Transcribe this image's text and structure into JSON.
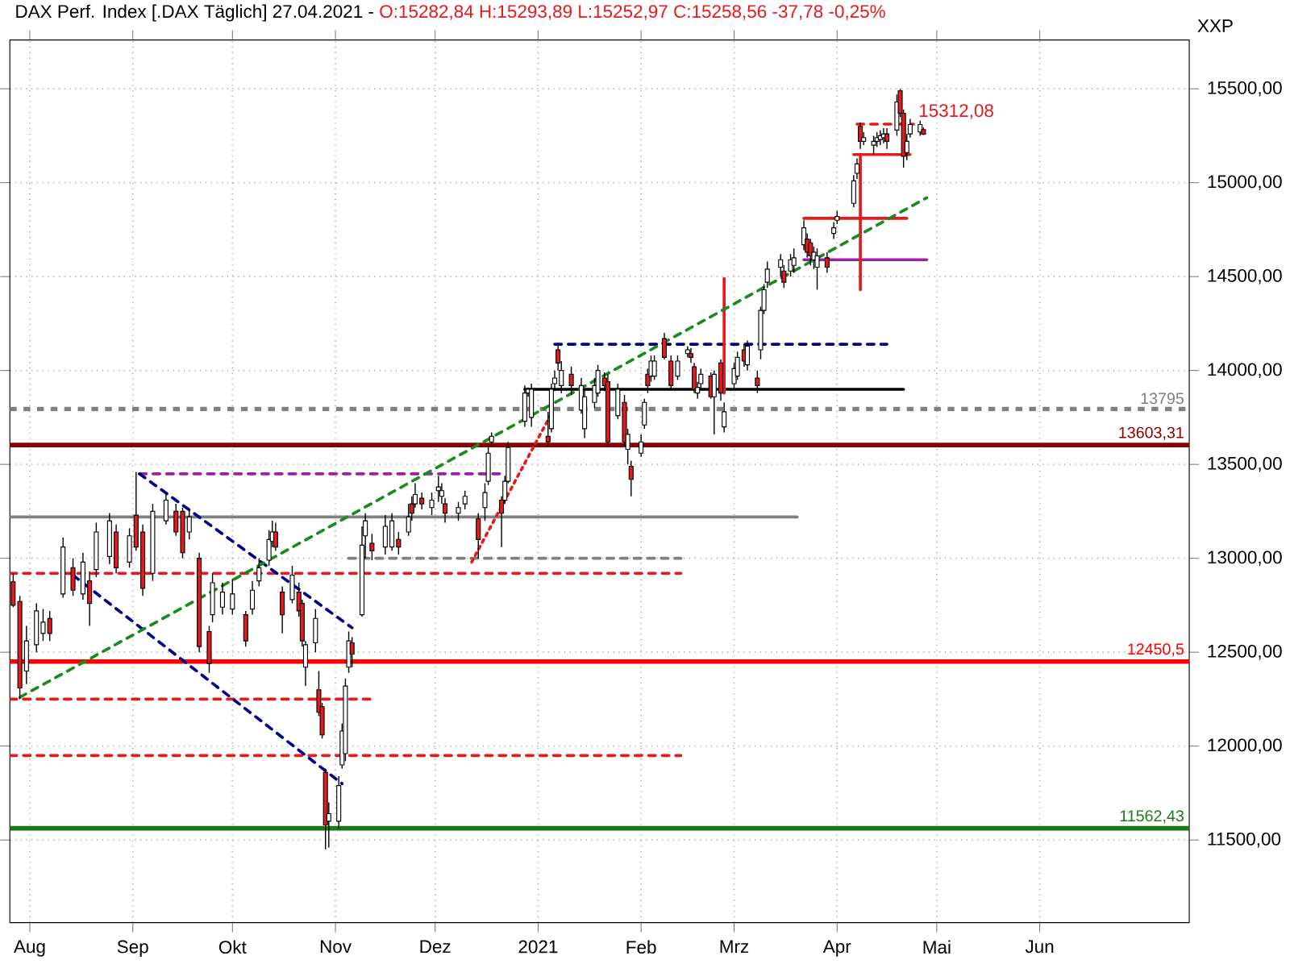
{
  "chart_data": {
    "type": "candlestick",
    "title": "DAX Perf. Index [.DAX Täglich] 27.04.2021 -",
    "subtitle": "O:15282,84 H:15293,89 L:15252,97 C:15258,56 -37,78 -0,25%",
    "ylabel": "XXP",
    "x": [
      "2020-07-27",
      "2020-07-29",
      "2020-07-31",
      "2020-08-03",
      "2020-08-05",
      "2020-08-07",
      "2020-08-11",
      "2020-08-14",
      "2020-08-17",
      "2020-08-19",
      "2020-08-21",
      "2020-08-25",
      "2020-08-27",
      "2020-08-31",
      "2020-09-02",
      "2020-09-04",
      "2020-09-07",
      "2020-09-11",
      "2020-09-14",
      "2020-09-16",
      "2020-09-18",
      "2020-09-21",
      "2020-09-24",
      "2020-09-25",
      "2020-09-28",
      "2020-10-01",
      "2020-10-05",
      "2020-10-07",
      "2020-10-09",
      "2020-10-12",
      "2020-10-13",
      "2020-10-14",
      "2020-10-16",
      "2020-10-19",
      "2020-10-21",
      "2020-10-22",
      "2020-10-23",
      "2020-10-26",
      "2020-10-27",
      "2020-10-28",
      "2020-10-29",
      "2020-10-30",
      "2020-11-02",
      "2020-11-03",
      "2020-11-04",
      "2020-11-05",
      "2020-11-06",
      "2020-11-09",
      "2020-11-10",
      "2020-11-12",
      "2020-11-16",
      "2020-11-18",
      "2020-11-20",
      "2020-11-23",
      "2020-11-24",
      "2020-11-25",
      "2020-11-27",
      "2020-11-30",
      "2020-12-02",
      "2020-12-03",
      "2020-12-04",
      "2020-12-08",
      "2020-12-10",
      "2020-12-14",
      "2020-12-16",
      "2020-12-17",
      "2020-12-18",
      "2020-12-21",
      "2020-12-22",
      "2020-12-23",
      "2020-12-28",
      "2020-12-29",
      "2020-12-30",
      "2021-01-04",
      "2021-01-05",
      "2021-01-06",
      "2021-01-07",
      "2021-01-08",
      "2021-01-11",
      "2021-01-14",
      "2021-01-15",
      "2021-01-18",
      "2021-01-19",
      "2021-01-21",
      "2021-01-22",
      "2021-01-25",
      "2021-01-27",
      "2021-01-28",
      "2021-01-29",
      "2021-02-01",
      "2021-02-02",
      "2021-02-03",
      "2021-02-04",
      "2021-02-05",
      "2021-02-08",
      "2021-02-10",
      "2021-02-12",
      "2021-02-15",
      "2021-02-16",
      "2021-02-17",
      "2021-02-18",
      "2021-02-19",
      "2021-02-22",
      "2021-02-23",
      "2021-02-25",
      "2021-02-26",
      "2021-03-01",
      "2021-03-02",
      "2021-03-04",
      "2021-03-05",
      "2021-03-08",
      "2021-03-09",
      "2021-03-10",
      "2021-03-11",
      "2021-03-15",
      "2021-03-16",
      "2021-03-18",
      "2021-03-19",
      "2021-03-22",
      "2021-03-23",
      "2021-03-24",
      "2021-03-25",
      "2021-03-26",
      "2021-03-29",
      "2021-03-31",
      "2021-04-01",
      "2021-04-06",
      "2021-04-07",
      "2021-04-08",
      "2021-04-09",
      "2021-04-12",
      "2021-04-13",
      "2021-04-14",
      "2021-04-15",
      "2021-04-16",
      "2021-04-19",
      "2021-04-20",
      "2021-04-21",
      "2021-04-22",
      "2021-04-23",
      "2021-04-26",
      "2021-04-27"
    ],
    "ohlc": [
      [
        12875,
        12920,
        12740,
        12750
      ],
      [
        12770,
        12800,
        12250,
        12310
      ],
      [
        12400,
        12640,
        12330,
        12560
      ],
      [
        12540,
        12760,
        12500,
        12720
      ],
      [
        12600,
        12730,
        12560,
        12660
      ],
      [
        12680,
        12720,
        12560,
        12600
      ],
      [
        12810,
        13110,
        12790,
        13060
      ],
      [
        12950,
        13000,
        12800,
        12830
      ],
      [
        12810,
        13030,
        12780,
        12980
      ],
      [
        12880,
        12930,
        12640,
        12760
      ],
      [
        12940,
        13190,
        12900,
        13140
      ],
      [
        13010,
        13240,
        12970,
        13200
      ],
      [
        13140,
        13180,
        12920,
        12950
      ],
      [
        12980,
        13160,
        12950,
        13120
      ],
      [
        13230,
        13460,
        13040,
        13060
      ],
      [
        13140,
        13180,
        12800,
        12840
      ],
      [
        12920,
        13290,
        12880,
        13250
      ],
      [
        13200,
        13350,
        13180,
        13310
      ],
      [
        13250,
        13290,
        13120,
        13140
      ],
      [
        13250,
        13270,
        13000,
        13030
      ],
      [
        13140,
        13260,
        13100,
        13220
      ],
      [
        13000,
        13030,
        12500,
        12530
      ],
      [
        12610,
        12640,
        12390,
        12440
      ],
      [
        12700,
        12920,
        12660,
        12870
      ],
      [
        12740,
        12870,
        12700,
        12820
      ],
      [
        12730,
        12890,
        12700,
        12810
      ],
      [
        12700,
        12720,
        12530,
        12560
      ],
      [
        12730,
        12880,
        12700,
        12830
      ],
      [
        12880,
        13000,
        12850,
        12950
      ],
      [
        12990,
        13150,
        12960,
        13100
      ],
      [
        13090,
        13200,
        13060,
        13140
      ],
      [
        13140,
        13190,
        13040,
        13060
      ],
      [
        12820,
        12850,
        12600,
        12700
      ],
      [
        12780,
        12960,
        12760,
        12910
      ],
      [
        12820,
        12870,
        12690,
        12720
      ],
      [
        12760,
        12780,
        12530,
        12560
      ],
      [
        12420,
        12560,
        12320,
        12540
      ],
      [
        12550,
        12730,
        12500,
        12680
      ],
      [
        12300,
        12400,
        12160,
        12180
      ],
      [
        12210,
        12230,
        12040,
        12060
      ],
      [
        11860,
        11880,
        11450,
        11580
      ],
      [
        11600,
        11700,
        11460,
        11640
      ],
      [
        11600,
        11840,
        11560,
        11790
      ],
      [
        11900,
        12120,
        11880,
        12080
      ],
      [
        11960,
        12360,
        11920,
        12320
      ],
      [
        12420,
        12610,
        12390,
        12560
      ],
      [
        12550,
        12580,
        12420,
        12490
      ],
      [
        12700,
        13170,
        12690,
        13070
      ],
      [
        13120,
        13240,
        13000,
        13200
      ],
      [
        13080,
        13130,
        12990,
        13040
      ],
      [
        13060,
        13230,
        13020,
        13170
      ],
      [
        13060,
        13240,
        13040,
        13200
      ],
      [
        13100,
        13140,
        13020,
        13060
      ],
      [
        13140,
        13290,
        13120,
        13220
      ],
      [
        13290,
        13330,
        13200,
        13240
      ],
      [
        13290,
        13400,
        13270,
        13340
      ],
      [
        13320,
        13350,
        13260,
        13290
      ],
      [
        13270,
        13350,
        13230,
        13310
      ],
      [
        13360,
        13440,
        13300,
        13380
      ],
      [
        13330,
        13400,
        13290,
        13360
      ],
      [
        13290,
        13320,
        13190,
        13240
      ],
      [
        13240,
        13300,
        13200,
        13270
      ],
      [
        13290,
        13360,
        13260,
        13330
      ],
      [
        13210,
        13240,
        13000,
        13100
      ],
      [
        13270,
        13400,
        13200,
        13350
      ],
      [
        13410,
        13600,
        13390,
        13560
      ],
      [
        13620,
        13670,
        13600,
        13650
      ],
      [
        13310,
        13330,
        13060,
        13240
      ],
      [
        13310,
        13440,
        13290,
        13410
      ],
      [
        13410,
        13620,
        13400,
        13590
      ],
      [
        13730,
        13920,
        13700,
        13880
      ],
      [
        13880,
        13910,
        13860,
        13900
      ],
      [
        13750,
        13930,
        13700,
        13900
      ],
      [
        13650,
        13780,
        13600,
        13620
      ],
      [
        13690,
        13930,
        13670,
        13900
      ],
      [
        13930,
        14000,
        13890,
        13960
      ],
      [
        14110,
        14140,
        14000,
        14040
      ],
      [
        13920,
        14050,
        13880,
        14000
      ],
      [
        13980,
        14020,
        13870,
        13920
      ],
      [
        13790,
        13960,
        13770,
        13920
      ],
      [
        13690,
        13900,
        13640,
        13860
      ],
      [
        13830,
        13960,
        13800,
        13920
      ],
      [
        13880,
        14030,
        13860,
        14000
      ],
      [
        13960,
        13990,
        13890,
        13920
      ],
      [
        13940,
        13980,
        13600,
        13620
      ],
      [
        13760,
        13930,
        13740,
        13900
      ],
      [
        13830,
        13870,
        13600,
        13620
      ],
      [
        13580,
        13690,
        13500,
        13660
      ],
      [
        13490,
        13520,
        13330,
        13420
      ],
      [
        13560,
        13660,
        13540,
        13620
      ],
      [
        13710,
        13850,
        13690,
        13830
      ],
      [
        13980,
        14010,
        13880,
        13920
      ],
      [
        13970,
        14080,
        13940,
        14050
      ],
      [
        13970,
        14080,
        13950,
        14050
      ],
      [
        14170,
        14200,
        14060,
        14070
      ],
      [
        14050,
        14080,
        13900,
        13920
      ],
      [
        13970,
        14080,
        13950,
        14050
      ],
      [
        14090,
        14130,
        14070,
        14110
      ],
      [
        14090,
        14120,
        14040,
        14070
      ],
      [
        14020,
        14040,
        13880,
        13900
      ],
      [
        13880,
        13940,
        13850,
        13910
      ],
      [
        13930,
        14010,
        13900,
        13980
      ],
      [
        13970,
        13990,
        13850,
        13860
      ],
      [
        13860,
        14000,
        13660,
        13980
      ],
      [
        14040,
        14060,
        13840,
        13880
      ],
      [
        13700,
        13830,
        13670,
        13780
      ],
      [
        13930,
        14040,
        13900,
        14010
      ],
      [
        13970,
        14100,
        13950,
        14070
      ],
      [
        14110,
        14140,
        14020,
        14050
      ],
      [
        14030,
        14160,
        14000,
        14130
      ],
      [
        13960,
        14000,
        13880,
        13920
      ],
      [
        14110,
        14340,
        14060,
        14320
      ],
      [
        14320,
        14460,
        14300,
        14430
      ],
      [
        14470,
        14580,
        14440,
        14540
      ],
      [
        14550,
        14620,
        14500,
        14590
      ],
      [
        14530,
        14560,
        14440,
        14470
      ],
      [
        14530,
        14620,
        14500,
        14590
      ],
      [
        14560,
        14650,
        14520,
        14600
      ],
      [
        14670,
        14800,
        14640,
        14760
      ],
      [
        14700,
        14730,
        14600,
        14630
      ],
      [
        14680,
        14700,
        14560,
        14610
      ],
      [
        14590,
        14660,
        14540,
        14630
      ],
      [
        14550,
        14650,
        14430,
        14610
      ],
      [
        14600,
        14630,
        14520,
        14550
      ],
      [
        14730,
        14790,
        14700,
        14760
      ],
      [
        14800,
        14850,
        14780,
        14820
      ],
      [
        14890,
        15040,
        14870,
        15010
      ],
      [
        15050,
        15130,
        15020,
        15100
      ],
      [
        15300,
        15320,
        15180,
        15220
      ],
      [
        15220,
        15270,
        15200,
        15240
      ],
      [
        15200,
        15250,
        15150,
        15220
      ],
      [
        15220,
        15270,
        15190,
        15240
      ],
      [
        15230,
        15280,
        15200,
        15250
      ],
      [
        15240,
        15290,
        15210,
        15260
      ],
      [
        15260,
        15290,
        15180,
        15220
      ],
      [
        15280,
        15470,
        15250,
        15430
      ],
      [
        15490,
        15500,
        15350,
        15370
      ],
      [
        15370,
        15390,
        15080,
        15140
      ],
      [
        15160,
        15260,
        15120,
        15220
      ],
      [
        15260,
        15340,
        15240,
        15310
      ],
      [
        15270,
        15330,
        15250,
        15310
      ],
      [
        15282.84,
        15293.89,
        15252.97,
        15258.56
      ]
    ],
    "series": [
      {
        "type": "line",
        "x": [
          "2020-07-26",
          "2021-03-20"
        ],
        "values": [
          13220,
          13220
        ],
        "color": "#808080",
        "line_style": "solid"
      },
      {
        "type": "line",
        "x": [
          "2020-07-26",
          "2021-02-13"
        ],
        "values": [
          12920,
          12920
        ],
        "color": "#e8191b",
        "line_style": "dashed"
      },
      {
        "type": "line",
        "x": [
          "2020-07-26",
          "2021-02-13"
        ],
        "values": [
          11950,
          11950
        ],
        "color": "#e8191b",
        "line_style": "dashed"
      },
      {
        "type": "line",
        "x": [
          "2020-07-26",
          "2020-11-13"
        ],
        "values": [
          12250,
          12250
        ],
        "color": "#e8191b",
        "line_style": "dashed"
      },
      {
        "type": "line",
        "x": [
          "2020-09-03",
          "2020-12-22"
        ],
        "values": [
          13450,
          13450
        ],
        "color": "#9b1fa8",
        "line_style": "dashed"
      },
      {
        "type": "line",
        "x": [
          "2020-11-05",
          "2021-02-13"
        ],
        "values": [
          13000,
          13000
        ],
        "color": "#808080",
        "line_style": "dashed"
      },
      {
        "type": "line",
        "x": [
          "2021-01-06",
          "2021-04-16"
        ],
        "values": [
          14140,
          14140
        ],
        "color": "#00008b",
        "line_style": "dashed"
      },
      {
        "type": "line",
        "x": [
          "2020-12-28",
          "2021-04-21"
        ],
        "values": [
          13900,
          13900
        ],
        "color": "#000000",
        "line_style": "solid"
      },
      {
        "type": "line",
        "x": [
          "2020-09-03",
          "2020-11-06"
        ],
        "values": [
          13450,
          12630
        ],
        "color": "#00008b",
        "line_style": "dashed"
      },
      {
        "type": "line",
        "x": [
          "2020-08-14",
          "2020-11-03"
        ],
        "values": [
          12910,
          11800
        ],
        "color": "#00008b",
        "line_style": "dashed"
      },
      {
        "type": "line",
        "x": [
          "2020-12-12",
          "2021-01-05"
        ],
        "values": [
          12980,
          13770
        ],
        "color": "#e8191b",
        "line_style": "dotted"
      },
      {
        "type": "line",
        "x": [
          "2021-03-22",
          "2021-04-22"
        ],
        "values": [
          14810,
          14810
        ],
        "color": "#e8191b",
        "line_style": "solid"
      },
      {
        "type": "line",
        "x": [
          "2021-03-22",
          "2021-04-28"
        ],
        "values": [
          14590,
          14590
        ],
        "color": "#9b1fa8",
        "line_style": "solid"
      },
      {
        "type": "line",
        "x": [
          "2021-04-06",
          "2021-04-23"
        ],
        "values": [
          15150,
          15150
        ],
        "color": "#e8191b",
        "line_style": "solid"
      },
      {
        "type": "line",
        "x": [
          "2021-02-26",
          "2021-02-26"
        ],
        "values": [
          13880,
          14490
        ],
        "color": "#e8191b",
        "line_style": "solid"
      },
      {
        "type": "line",
        "x": [
          "2021-04-08",
          "2021-04-08"
        ],
        "values": [
          14430,
          15150
        ],
        "color": "#e8191b",
        "line_style": "solid"
      },
      {
        "type": "line",
        "x": [
          "2021-04-07",
          "2021-04-24"
        ],
        "values": [
          15312.08,
          15312.08
        ],
        "color": "#e8191b",
        "line_style": "dashed"
      },
      {
        "type": "line",
        "x": [
          "2020-07-29",
          "2021-04-28"
        ],
        "values": [
          12260,
          14920
        ],
        "color": "#1a8a1a",
        "line_style": "dashed"
      }
    ],
    "ref_lines": [
      {
        "axis": "y",
        "value": 13795,
        "label": "13795",
        "color": "#808080",
        "line_style": "dashed"
      },
      {
        "axis": "y",
        "value": 13603.31,
        "label": "13603,31",
        "color": "#8b0000",
        "line_style": "solid"
      },
      {
        "axis": "y",
        "value": 12450.5,
        "label": "12450,5",
        "color": "#ff0000",
        "line_style": "solid"
      },
      {
        "axis": "y",
        "value": 11562.43,
        "label": "11562,43",
        "color": "#1a7a1a",
        "line_style": "solid"
      }
    ],
    "annotations": [
      {
        "text": "15312,08",
        "x": "2021-04-24",
        "y": 15312.08
      }
    ],
    "xlim": [
      "2020-07-26",
      "2021-07-16"
    ],
    "ylim": [
      11060,
      15760
    ],
    "xticks": [
      {
        "value": "2020-08-01",
        "label": "Aug"
      },
      {
        "value": "2020-09-01",
        "label": "Sep"
      },
      {
        "value": "2020-10-01",
        "label": "Okt"
      },
      {
        "value": "2020-11-01",
        "label": "Nov"
      },
      {
        "value": "2020-12-01",
        "label": "Dez"
      },
      {
        "value": "2021-01-01",
        "label": "2021"
      },
      {
        "value": "2021-02-01",
        "label": "Feb"
      },
      {
        "value": "2021-03-01",
        "label": "Mrz"
      },
      {
        "value": "2021-04-01",
        "label": "Apr"
      },
      {
        "value": "2021-05-01",
        "label": "Mai"
      },
      {
        "value": "2021-06-01",
        "label": "Jun"
      }
    ],
    "yticks": [
      {
        "value": 11500,
        "label": "11500,00"
      },
      {
        "value": 12000,
        "label": "12000,00"
      },
      {
        "value": 12500,
        "label": "12500,00"
      },
      {
        "value": 13000,
        "label": "13000,00"
      },
      {
        "value": 13500,
        "label": "13500,00"
      },
      {
        "value": 14000,
        "label": "14000,00"
      },
      {
        "value": 14500,
        "label": "14500,00"
      },
      {
        "value": 15000,
        "label": "15000,00"
      },
      {
        "value": 15500,
        "label": "15500,00"
      }
    ],
    "grid": true
  }
}
